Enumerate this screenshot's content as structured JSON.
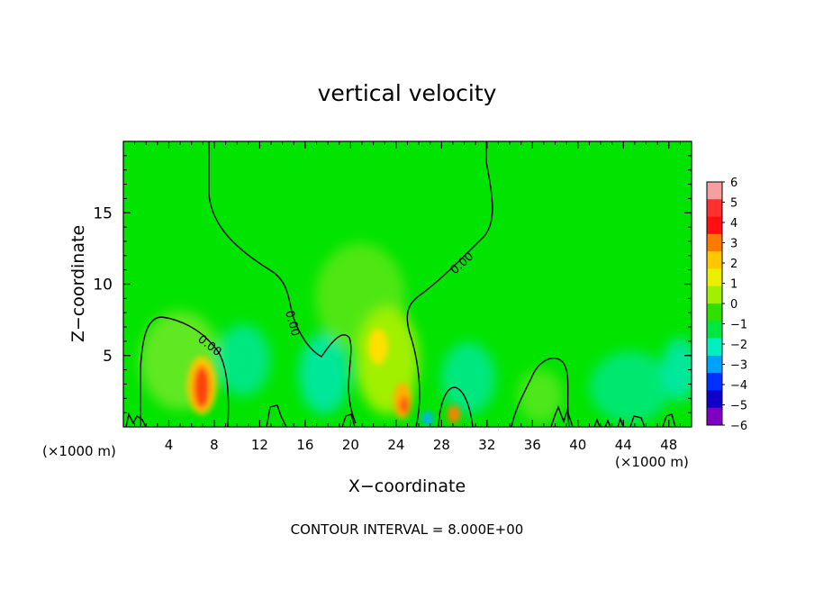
{
  "chart_data": {
    "type": "heatmap",
    "title": "vertical velocity",
    "xlabel": "X−coordinate",
    "ylabel": "Z−coordinate",
    "x_unit_left": "(×1000 m)",
    "x_unit_right": "(×1000 m)",
    "xlim": [
      0,
      50
    ],
    "ylim": [
      0,
      20
    ],
    "x_ticks": [
      4,
      8,
      12,
      16,
      20,
      24,
      28,
      32,
      36,
      40,
      44,
      48
    ],
    "x_tick_labels": [
      "4",
      "8",
      "12",
      "16",
      "20",
      "24",
      "28",
      "32",
      "36",
      "40",
      "44",
      "48"
    ],
    "y_ticks": [
      5,
      10,
      15
    ],
    "y_tick_labels": [
      "5",
      "10",
      "15"
    ],
    "colorbar": {
      "levels": [
        6,
        5,
        4,
        3,
        2,
        1,
        0,
        -1,
        -2,
        -3,
        -4,
        -5,
        -6
      ],
      "labels": [
        "6",
        "5",
        "4",
        "3",
        "2",
        "1",
        "0",
        "−1",
        "−2",
        "−3",
        "−4",
        "−5",
        "−6"
      ],
      "colors": [
        "#f4a0a0",
        "#ff3030",
        "#ff1010",
        "#ff7a00",
        "#ffc800",
        "#e8f000",
        "#a0f000",
        "#30e000",
        "#00e840",
        "#00f0c0",
        "#00a0ff",
        "#0030ff",
        "#1000c8",
        "#8000c0"
      ]
    },
    "background_color": "#00e400",
    "contour_label": "0.00",
    "footer": "CONTOUR INTERVAL = 8.000E+00"
  }
}
